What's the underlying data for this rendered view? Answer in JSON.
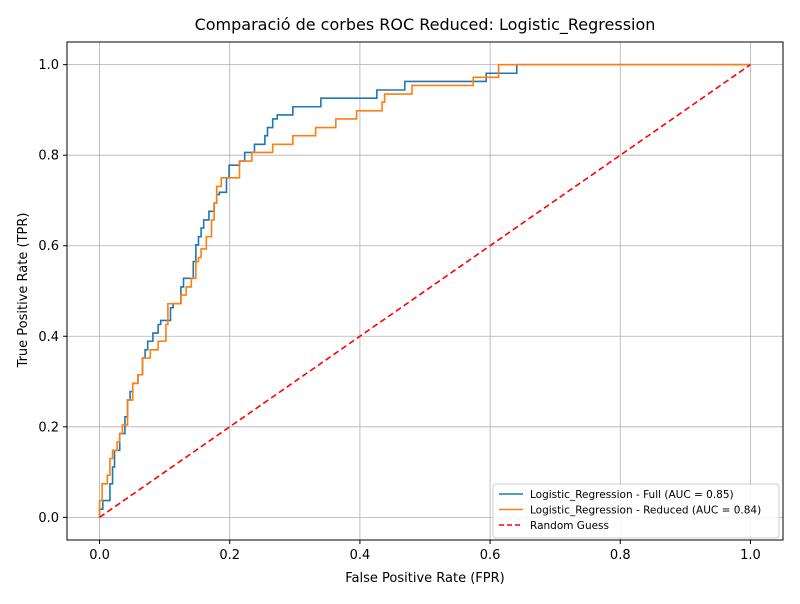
{
  "chart_data": {
    "type": "line",
    "title": "Comparació de corbes ROC Reduced: Logistic_Regression",
    "xlabel": "False Positive Rate (FPR)",
    "ylabel": "True Positive Rate (TPR)",
    "xlim": [
      -0.05,
      1.05
    ],
    "ylim": [
      -0.05,
      1.05
    ],
    "xticks": [
      0.0,
      0.2,
      0.4,
      0.6,
      0.8,
      1.0
    ],
    "yticks": [
      0.0,
      0.2,
      0.4,
      0.6,
      0.8,
      1.0
    ],
    "xtick_labels": [
      "0.0",
      "0.2",
      "0.4",
      "0.6",
      "0.8",
      "1.0"
    ],
    "ytick_labels": [
      "0.0",
      "0.2",
      "0.4",
      "0.6",
      "0.8",
      "1.0"
    ],
    "grid": true,
    "legend_position": "lower-right",
    "series": [
      {
        "name": "Logistic_Regression - Full (AUC = 0.85)",
        "color": "#1f77b4",
        "style": "solid",
        "points": [
          [
            0.0,
            0.0
          ],
          [
            0.0,
            0.018
          ],
          [
            0.005,
            0.018
          ],
          [
            0.005,
            0.037
          ],
          [
            0.016,
            0.037
          ],
          [
            0.016,
            0.074
          ],
          [
            0.02,
            0.074
          ],
          [
            0.02,
            0.111
          ],
          [
            0.023,
            0.111
          ],
          [
            0.023,
            0.148
          ],
          [
            0.031,
            0.148
          ],
          [
            0.031,
            0.185
          ],
          [
            0.039,
            0.185
          ],
          [
            0.039,
            0.222
          ],
          [
            0.043,
            0.222
          ],
          [
            0.043,
            0.259
          ],
          [
            0.047,
            0.259
          ],
          [
            0.047,
            0.278
          ],
          [
            0.051,
            0.278
          ],
          [
            0.051,
            0.296
          ],
          [
            0.059,
            0.296
          ],
          [
            0.059,
            0.315
          ],
          [
            0.066,
            0.315
          ],
          [
            0.066,
            0.352
          ],
          [
            0.07,
            0.352
          ],
          [
            0.07,
            0.37
          ],
          [
            0.074,
            0.37
          ],
          [
            0.074,
            0.389
          ],
          [
            0.082,
            0.389
          ],
          [
            0.082,
            0.407
          ],
          [
            0.09,
            0.407
          ],
          [
            0.09,
            0.426
          ],
          [
            0.094,
            0.426
          ],
          [
            0.094,
            0.435
          ],
          [
            0.109,
            0.435
          ],
          [
            0.109,
            0.463
          ],
          [
            0.113,
            0.463
          ],
          [
            0.113,
            0.472
          ],
          [
            0.125,
            0.472
          ],
          [
            0.125,
            0.509
          ],
          [
            0.129,
            0.509
          ],
          [
            0.129,
            0.528
          ],
          [
            0.144,
            0.528
          ],
          [
            0.144,
            0.565
          ],
          [
            0.148,
            0.565
          ],
          [
            0.148,
            0.602
          ],
          [
            0.152,
            0.602
          ],
          [
            0.152,
            0.62
          ],
          [
            0.156,
            0.62
          ],
          [
            0.156,
            0.639
          ],
          [
            0.16,
            0.639
          ],
          [
            0.16,
            0.657
          ],
          [
            0.168,
            0.657
          ],
          [
            0.168,
            0.676
          ],
          [
            0.176,
            0.676
          ],
          [
            0.176,
            0.694
          ],
          [
            0.18,
            0.694
          ],
          [
            0.18,
            0.713
          ],
          [
            0.184,
            0.713
          ],
          [
            0.184,
            0.718
          ],
          [
            0.195,
            0.718
          ],
          [
            0.195,
            0.75
          ],
          [
            0.199,
            0.75
          ],
          [
            0.199,
            0.778
          ],
          [
            0.215,
            0.778
          ],
          [
            0.215,
            0.787
          ],
          [
            0.223,
            0.787
          ],
          [
            0.223,
            0.806
          ],
          [
            0.238,
            0.806
          ],
          [
            0.238,
            0.824
          ],
          [
            0.254,
            0.824
          ],
          [
            0.254,
            0.843
          ],
          [
            0.258,
            0.843
          ],
          [
            0.258,
            0.861
          ],
          [
            0.266,
            0.861
          ],
          [
            0.266,
            0.88
          ],
          [
            0.273,
            0.88
          ],
          [
            0.273,
            0.889
          ],
          [
            0.297,
            0.889
          ],
          [
            0.297,
            0.907
          ],
          [
            0.34,
            0.907
          ],
          [
            0.34,
            0.926
          ],
          [
            0.426,
            0.926
          ],
          [
            0.426,
            0.944
          ],
          [
            0.469,
            0.944
          ],
          [
            0.469,
            0.963
          ],
          [
            0.594,
            0.963
          ],
          [
            0.594,
            0.981
          ],
          [
            0.641,
            0.981
          ],
          [
            0.641,
            1.0
          ],
          [
            1.0,
            1.0
          ]
        ]
      },
      {
        "name": "Logistic_Regression - Reduced (AUC = 0.84)",
        "color": "#ff7f0e",
        "style": "solid",
        "points": [
          [
            0.0,
            0.0
          ],
          [
            0.0,
            0.037
          ],
          [
            0.004,
            0.037
          ],
          [
            0.004,
            0.074
          ],
          [
            0.012,
            0.074
          ],
          [
            0.012,
            0.093
          ],
          [
            0.016,
            0.093
          ],
          [
            0.016,
            0.13
          ],
          [
            0.02,
            0.13
          ],
          [
            0.02,
            0.148
          ],
          [
            0.027,
            0.148
          ],
          [
            0.027,
            0.167
          ],
          [
            0.031,
            0.167
          ],
          [
            0.031,
            0.185
          ],
          [
            0.035,
            0.185
          ],
          [
            0.035,
            0.204
          ],
          [
            0.043,
            0.204
          ],
          [
            0.043,
            0.259
          ],
          [
            0.051,
            0.259
          ],
          [
            0.051,
            0.296
          ],
          [
            0.059,
            0.296
          ],
          [
            0.059,
            0.315
          ],
          [
            0.066,
            0.315
          ],
          [
            0.066,
            0.352
          ],
          [
            0.078,
            0.352
          ],
          [
            0.078,
            0.37
          ],
          [
            0.09,
            0.37
          ],
          [
            0.09,
            0.389
          ],
          [
            0.102,
            0.389
          ],
          [
            0.102,
            0.426
          ],
          [
            0.105,
            0.426
          ],
          [
            0.105,
            0.472
          ],
          [
            0.125,
            0.472
          ],
          [
            0.125,
            0.491
          ],
          [
            0.133,
            0.491
          ],
          [
            0.133,
            0.509
          ],
          [
            0.141,
            0.509
          ],
          [
            0.141,
            0.528
          ],
          [
            0.148,
            0.528
          ],
          [
            0.148,
            0.565
          ],
          [
            0.152,
            0.565
          ],
          [
            0.152,
            0.574
          ],
          [
            0.156,
            0.574
          ],
          [
            0.156,
            0.593
          ],
          [
            0.164,
            0.593
          ],
          [
            0.164,
            0.62
          ],
          [
            0.172,
            0.62
          ],
          [
            0.172,
            0.657
          ],
          [
            0.176,
            0.657
          ],
          [
            0.176,
            0.694
          ],
          [
            0.18,
            0.694
          ],
          [
            0.18,
            0.731
          ],
          [
            0.187,
            0.731
          ],
          [
            0.187,
            0.75
          ],
          [
            0.215,
            0.75
          ],
          [
            0.215,
            0.787
          ],
          [
            0.234,
            0.787
          ],
          [
            0.234,
            0.806
          ],
          [
            0.266,
            0.806
          ],
          [
            0.266,
            0.824
          ],
          [
            0.297,
            0.824
          ],
          [
            0.297,
            0.843
          ],
          [
            0.332,
            0.843
          ],
          [
            0.332,
            0.861
          ],
          [
            0.363,
            0.861
          ],
          [
            0.363,
            0.88
          ],
          [
            0.395,
            0.88
          ],
          [
            0.395,
            0.898
          ],
          [
            0.434,
            0.898
          ],
          [
            0.434,
            0.917
          ],
          [
            0.438,
            0.917
          ],
          [
            0.438,
            0.935
          ],
          [
            0.48,
            0.935
          ],
          [
            0.48,
            0.954
          ],
          [
            0.574,
            0.954
          ],
          [
            0.574,
            0.972
          ],
          [
            0.613,
            0.972
          ],
          [
            0.613,
            1.0
          ],
          [
            1.0,
            1.0
          ]
        ]
      },
      {
        "name": "Random Guess",
        "color": "#ff0000",
        "style": "dashed",
        "points": [
          [
            0.0,
            0.0
          ],
          [
            1.0,
            1.0
          ]
        ]
      }
    ]
  }
}
